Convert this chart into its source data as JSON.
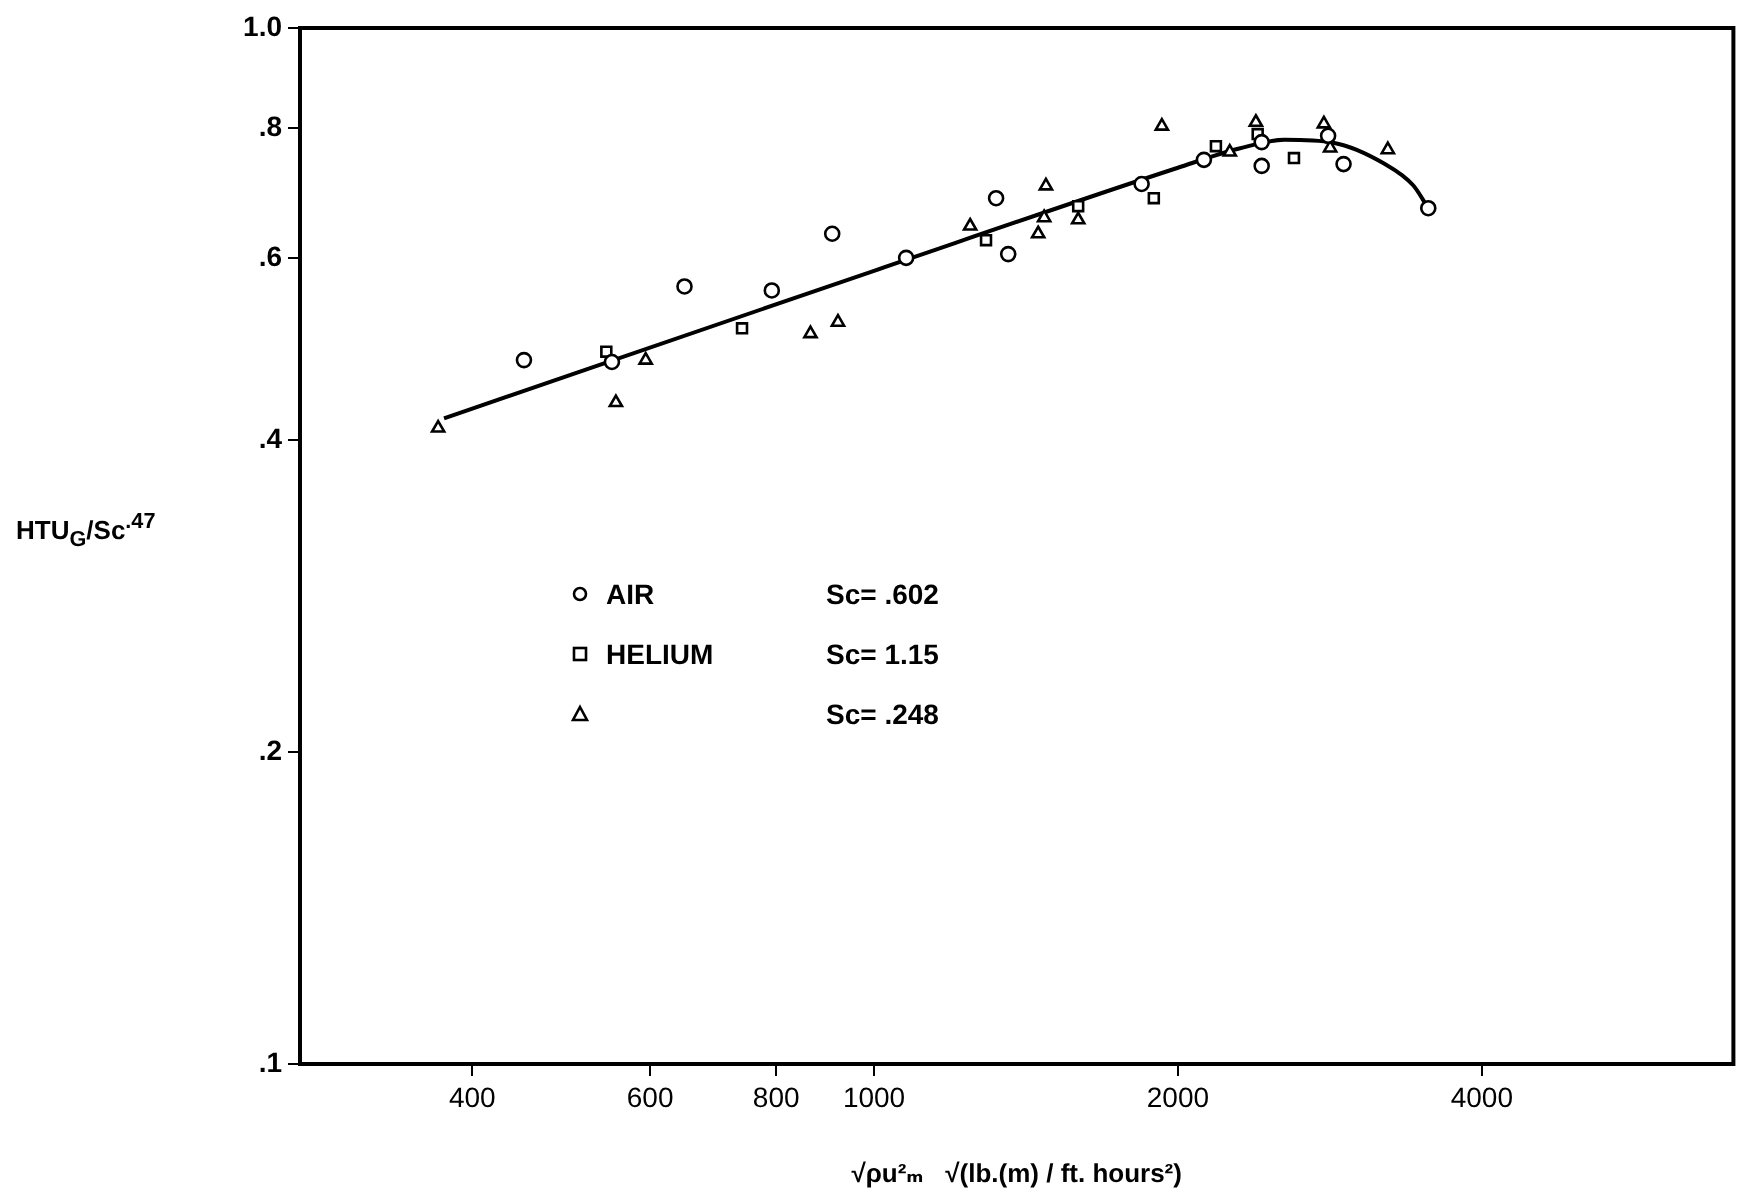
{
  "chart_data": {
    "type": "scatter",
    "ylabel": "HTU$_{G}$/Sc$^{.47}$",
    "xlabel": "√ρu²ₘ   √(lb.(m) / ft. hours²)",
    "log": "xy",
    "grid": false,
    "legend": "left",
    "xlim": [
      270,
      7100
    ],
    "xticks": [
      400,
      600,
      800,
      1000,
      2000,
      4000
    ],
    "ylim": [
      0.1,
      1.0
    ],
    "yticks": [
      {
        "value": 0.1,
        "label": ".1"
      },
      {
        "value": 0.2,
        "label": ".2"
      },
      {
        "value": 0.4,
        "label": ".4"
      },
      {
        "value": 0.6,
        "label": ".6"
      },
      {
        "value": 0.8,
        "label": ".8"
      },
      {
        "value": 1.0,
        "label": "1.0"
      }
    ],
    "annotations": [
      "Sc= .602",
      "Sc= 1.15",
      "Sc= .248"
    ],
    "series": [
      {
        "name": "AIR",
        "marker": "circle",
        "color": "#000000",
        "x": [
          450,
          550,
          649,
          792,
          909,
          1076,
          1321,
          1358,
          1841,
          2122,
          2421,
          2421,
          2817,
          2918,
          3540
        ],
        "values": [
          0.478,
          0.476,
          0.563,
          0.558,
          0.633,
          0.6,
          0.685,
          0.605,
          0.707,
          0.746,
          0.776,
          0.736,
          0.787,
          0.739,
          0.67
        ]
      },
      {
        "name": "HELIUM",
        "marker": "square",
        "color": "#000000",
        "x": [
          543,
          740,
          1291,
          1593,
          1893,
          2181,
          2399,
          2606
        ],
        "values": [
          0.487,
          0.513,
          0.624,
          0.673,
          0.685,
          0.769,
          0.79,
          0.749
        ]
      },
      {
        "marker": "triangle",
        "color": "#000000",
        "x": [
          370,
          555,
          594,
          865,
          921,
          1245,
          1454,
          1474,
          1480,
          1593,
          1928,
          2251,
          2389,
          2790,
          2830,
          3228
        ],
        "values": [
          0.411,
          0.435,
          0.478,
          0.507,
          0.52,
          0.644,
          0.633,
          0.656,
          0.704,
          0.653,
          0.804,
          0.759,
          0.811,
          0.808,
          0.766,
          0.763
        ]
      },
      {
        "type": "line",
        "marker": "none",
        "line_style": "solid",
        "color": "#000000",
        "x": [
          375,
          1000,
          2000,
          2300,
          2550,
          2850,
          3200,
          3420,
          3540
        ],
        "values": [
          0.42,
          0.583,
          0.733,
          0.765,
          0.78,
          0.775,
          0.74,
          0.705,
          0.67
        ]
      }
    ]
  }
}
